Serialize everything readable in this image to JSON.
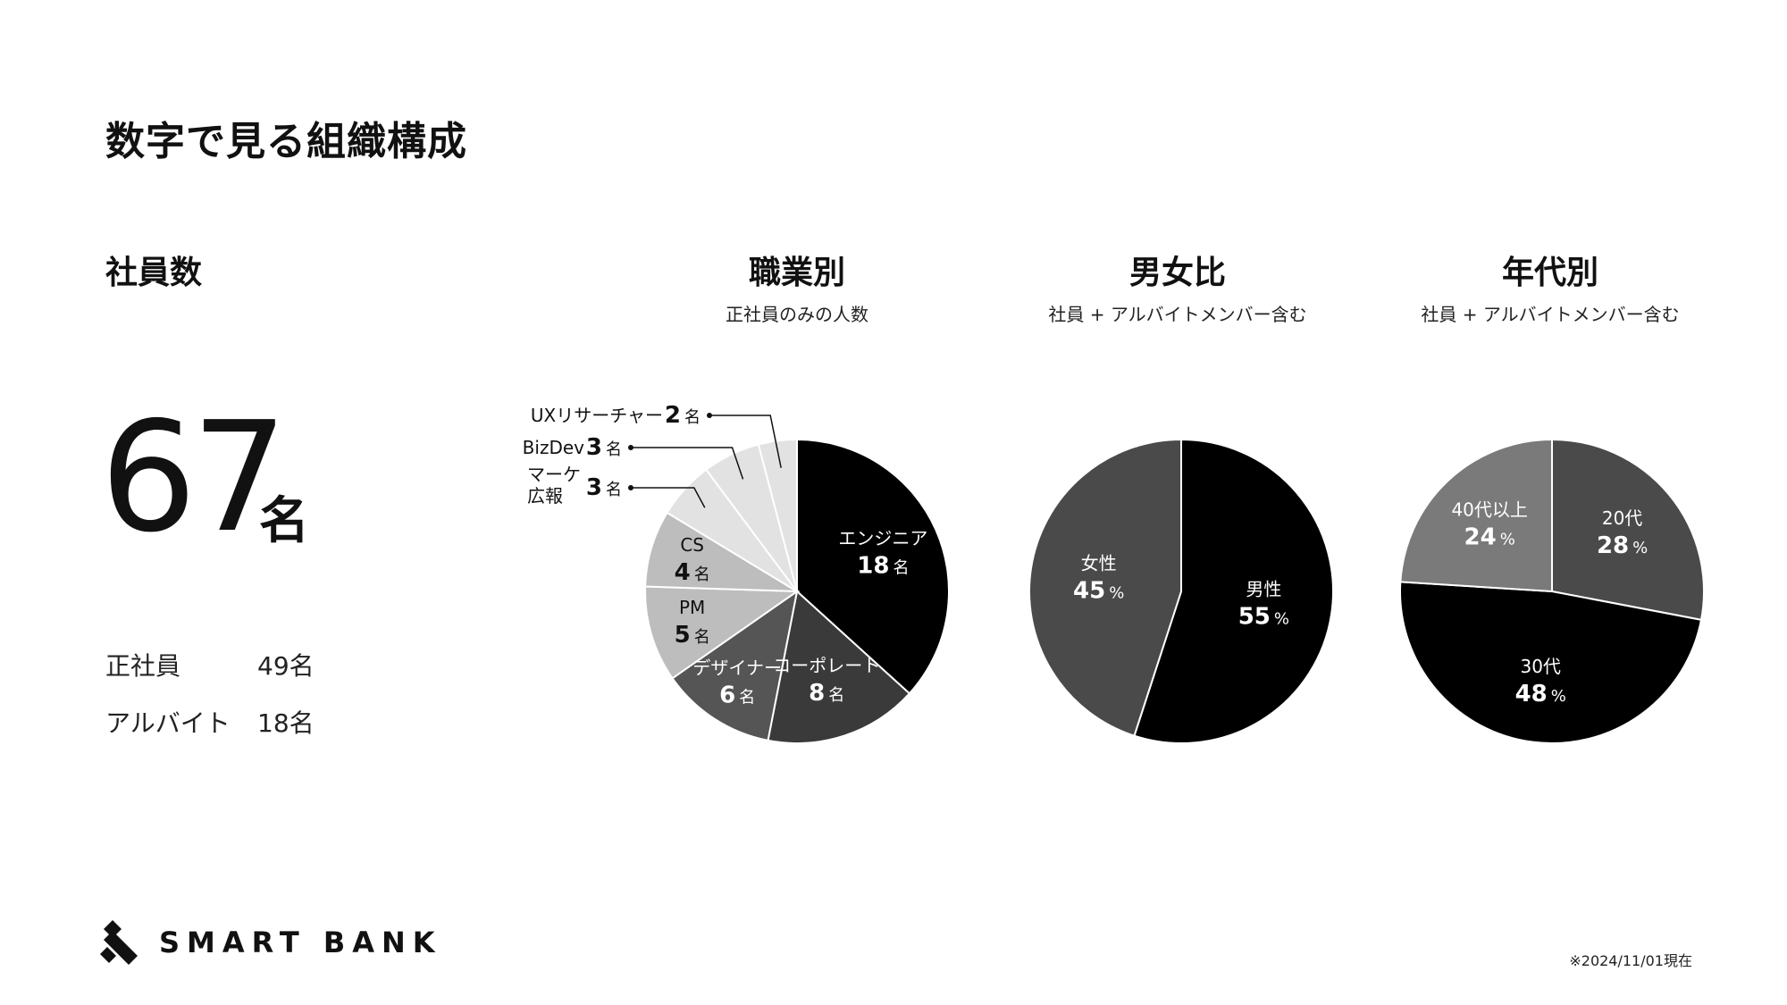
{
  "page_title": "数字で見る組織構成",
  "employees": {
    "heading": "社員数",
    "total_value": "67",
    "total_unit": "名",
    "rows": [
      {
        "label": "正社員",
        "value": "49名"
      },
      {
        "label": "アルバイト",
        "value": "18名"
      }
    ]
  },
  "charts_header": [
    {
      "title": "職業別",
      "subtitle": "正社員のみの人数"
    },
    {
      "title": "男女比",
      "subtitle": "社員 + アルバイトメンバー含む"
    },
    {
      "title": "年代別",
      "subtitle": "社員 + アルバイトメンバー含む"
    }
  ],
  "logo": {
    "text": "SMART BANK"
  },
  "footnote": "※2024/11/01現在",
  "chart_data": [
    {
      "type": "pie",
      "title": "職業別",
      "subtitle": "正社員のみの人数",
      "unit": "名",
      "slices": [
        {
          "label": "エンジニア",
          "value": 18,
          "color": "#000000"
        },
        {
          "label": "コーポレート",
          "value": 8,
          "color": "#3a3a3a"
        },
        {
          "label": "デザイナー",
          "value": 6,
          "color": "#555555"
        },
        {
          "label": "PM",
          "value": 5,
          "color": "#bdbdbd"
        },
        {
          "label": "CS",
          "value": 4,
          "color": "#bdbdbd"
        },
        {
          "label": "マーケ\n広報",
          "value": 3,
          "color": "#e2e2e2"
        },
        {
          "label": "BizDev",
          "value": 3,
          "color": "#e2e2e2"
        },
        {
          "label": "UXリサーチャー",
          "value": 2,
          "color": "#e2e2e2"
        }
      ]
    },
    {
      "type": "pie",
      "title": "男女比",
      "subtitle": "社員 + アルバイトメンバー含む",
      "unit": "%",
      "slices": [
        {
          "label": "男性",
          "value": 55,
          "color": "#000000"
        },
        {
          "label": "女性",
          "value": 45,
          "color": "#4a4a4a"
        }
      ]
    },
    {
      "type": "pie",
      "title": "年代別",
      "subtitle": "社員 + アルバイトメンバー含む",
      "unit": "%",
      "slices": [
        {
          "label": "20代",
          "value": 28,
          "color": "#4a4a4a"
        },
        {
          "label": "30代",
          "value": 48,
          "color": "#000000"
        },
        {
          "label": "40代以上",
          "value": 24,
          "color": "#7a7a7a"
        }
      ]
    }
  ]
}
